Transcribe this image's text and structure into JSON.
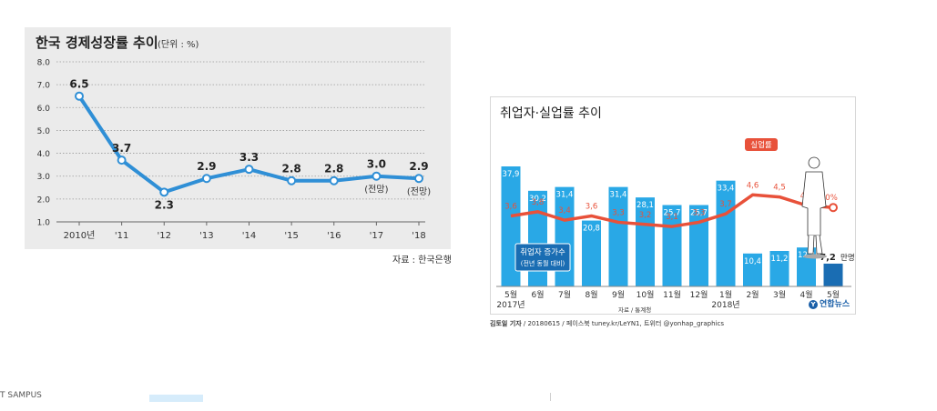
{
  "chart_data": [
    {
      "type": "line",
      "title": "한국 경제성장률 추이",
      "unit": "(단위 : %)",
      "categories": [
        "2010년",
        "'11",
        "'12",
        "'13",
        "'14",
        "'15",
        "'16",
        "'17",
        "'18"
      ],
      "values": [
        6.5,
        3.7,
        2.3,
        2.9,
        3.3,
        2.8,
        2.8,
        3.0,
        2.9
      ],
      "value_labels": [
        "6.5",
        "3.7",
        "2.3",
        "2.9",
        "3.3",
        "2.8",
        "2.8",
        "3.0",
        "2.9"
      ],
      "annotations": [
        "",
        "",
        "",
        "",
        "",
        "",
        "",
        "(전망)",
        "(전망)"
      ],
      "yticks": [
        "8.0",
        "7.0",
        "6.0",
        "5.0",
        "4.0",
        "3.0",
        "2.0",
        "1.0"
      ],
      "ylim": [
        1.0,
        8.0
      ],
      "grid": true,
      "line_color": "#2f8fd6",
      "source": "자료 : 한국은행"
    },
    {
      "type": "bar+line",
      "title": "취업자·실업률 추이",
      "categories": [
        "5월",
        "6월",
        "7월",
        "8월",
        "9월",
        "10월",
        "11월",
        "12월",
        "1월",
        "2월",
        "3월",
        "4월",
        "5월"
      ],
      "year_labels": [
        {
          "index": 0,
          "label": "2017년"
        },
        {
          "index": 8,
          "label": "2018년"
        }
      ],
      "bars": {
        "name": "취업자 증가수",
        "sub": "(전년 동월 대비)",
        "values": [
          37.9,
          30.2,
          31.4,
          20.8,
          31.4,
          28.1,
          25.7,
          25.7,
          33.4,
          10.4,
          11.2,
          12.3,
          7.2
        ],
        "labels": [
          "37,9",
          "30,2",
          "31,4",
          "20,8",
          "31,4",
          "28,1",
          "25,7",
          "25,7",
          "33,4",
          "10,4",
          "11,2",
          "12,3",
          "7,2"
        ],
        "last_unit": "만명",
        "color": "#29a8e6",
        "last_color": "#1a6db3"
      },
      "line": {
        "name": "실업률",
        "values": [
          3.6,
          3.8,
          3.4,
          3.6,
          3.3,
          3.2,
          3.1,
          3.3,
          3.7,
          4.6,
          4.5,
          4.1,
          4.0
        ],
        "labels": [
          "3,6",
          "3,8",
          "3,4",
          "3,6",
          "3,3",
          "3,2",
          "3,1",
          "3,3",
          "3,7",
          "4,6",
          "4,5",
          "4,1",
          "4,0%"
        ],
        "color": "#e8513a"
      },
      "source": "자료 / 통계청",
      "credit_name": "김토일 기자",
      "credit_rest": " / 20180615 / 페이스북 tuney.kr/LeYN1, 트위터 @yonhap_graphics",
      "logo": "연합뉴스"
    }
  ],
  "footer": {
    "text": "T SAMPUS"
  }
}
